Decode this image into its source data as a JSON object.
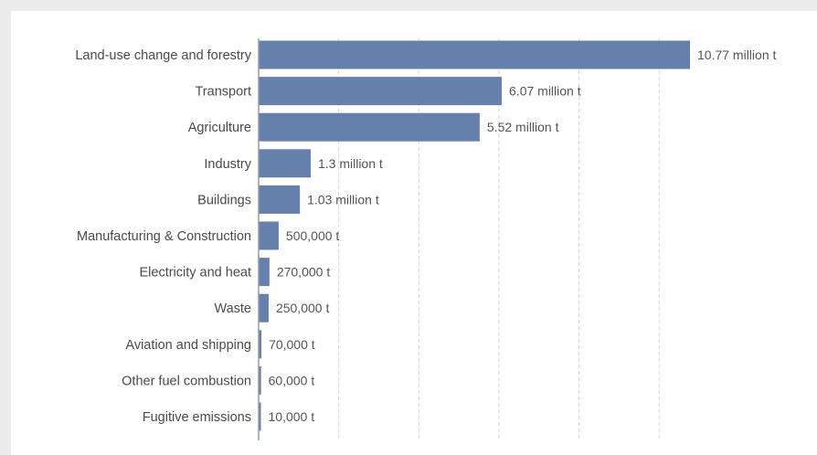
{
  "chart_data": {
    "type": "bar",
    "orientation": "horizontal",
    "categories": [
      "Land-use change and forestry",
      "Transport",
      "Agriculture",
      "Industry",
      "Buildings",
      "Manufacturing & Construction",
      "Electricity and heat",
      "Waste",
      "Aviation and shipping",
      "Other fuel combustion",
      "Fugitive emissions"
    ],
    "values": [
      10770000,
      6070000,
      5520000,
      1300000,
      1030000,
      500000,
      270000,
      250000,
      70000,
      60000,
      10000
    ],
    "value_labels": [
      "10.77 million t",
      "6.07 million t",
      "5.52 million t",
      "1.3 million t",
      "1.03 million t",
      "500,000 t",
      "270,000 t",
      "250,000 t",
      "70,000 t",
      "60,000 t",
      "10,000 t"
    ],
    "xlim": [
      0,
      10770000
    ],
    "grid": true,
    "color": "#6680ad"
  }
}
